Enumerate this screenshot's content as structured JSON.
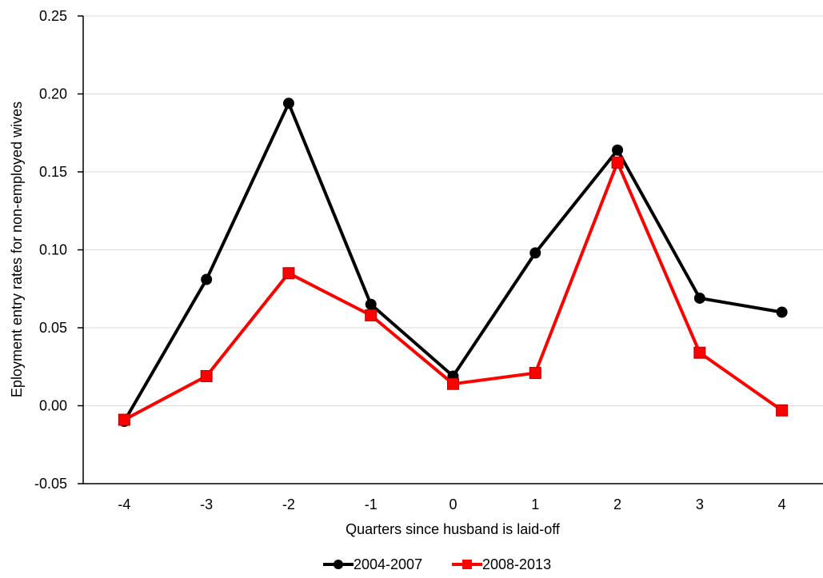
{
  "chart_data": {
    "type": "line",
    "title": "",
    "xlabel": "Quarters since husband is laid-off",
    "ylabel": "Eployment entry rates for non-employed wives",
    "categories": [
      "-4",
      "-3",
      "-2",
      "-1",
      "0",
      "1",
      "2",
      "3",
      "4"
    ],
    "ylim": [
      -0.05,
      0.25
    ],
    "yticks": [
      "-0.05",
      "0.00",
      "0.05",
      "0.10",
      "0.15",
      "0.20",
      "0.25"
    ],
    "grid": "horizontal",
    "legend_position": "bottom",
    "series": [
      {
        "name": "2004-2007",
        "color": "#000000",
        "marker": "circle",
        "values": [
          -0.01,
          0.081,
          0.194,
          0.065,
          0.019,
          0.098,
          0.164,
          0.069,
          0.06
        ]
      },
      {
        "name": "2008-2013",
        "color": "#ff0000",
        "marker": "square",
        "values": [
          -0.009,
          0.019,
          0.085,
          0.058,
          0.014,
          0.021,
          0.156,
          0.034,
          -0.003
        ]
      }
    ]
  }
}
